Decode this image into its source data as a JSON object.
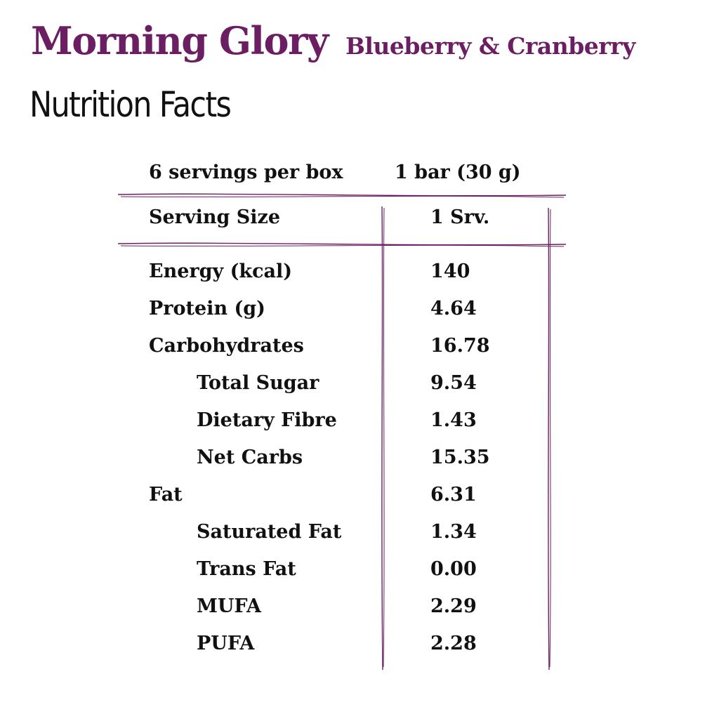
{
  "brand": {
    "name": "Morning Glory",
    "flavor": "Blueberry & Cranberry",
    "color": "#6b1f62"
  },
  "title": "Nutrition Facts",
  "header": {
    "servings_per_box": "6 servings per box",
    "bar_size": "1 bar (30 g)"
  },
  "serving": {
    "label": "Serving Size",
    "value": "1 Srv."
  },
  "rows": [
    {
      "label": "Energy (kcal)",
      "value": "140"
    },
    {
      "label": "Protein (g)",
      "value": "4.64"
    },
    {
      "label": "Carbohydrates",
      "value": "16.78"
    },
    {
      "label": "Total Sugar",
      "value": "9.54"
    },
    {
      "label": "Dietary Fibre",
      "value": "1.43"
    },
    {
      "label": "Net Carbs",
      "value": "15.35"
    },
    {
      "label": "Fat",
      "value": "6.31"
    },
    {
      "label": "Saturated Fat",
      "value": "1.34"
    },
    {
      "label": "Trans Fat",
      "value": "0.00"
    },
    {
      "label": "MUFA",
      "value": "2.29"
    },
    {
      "label": "PUFA",
      "value": "2.28"
    }
  ]
}
